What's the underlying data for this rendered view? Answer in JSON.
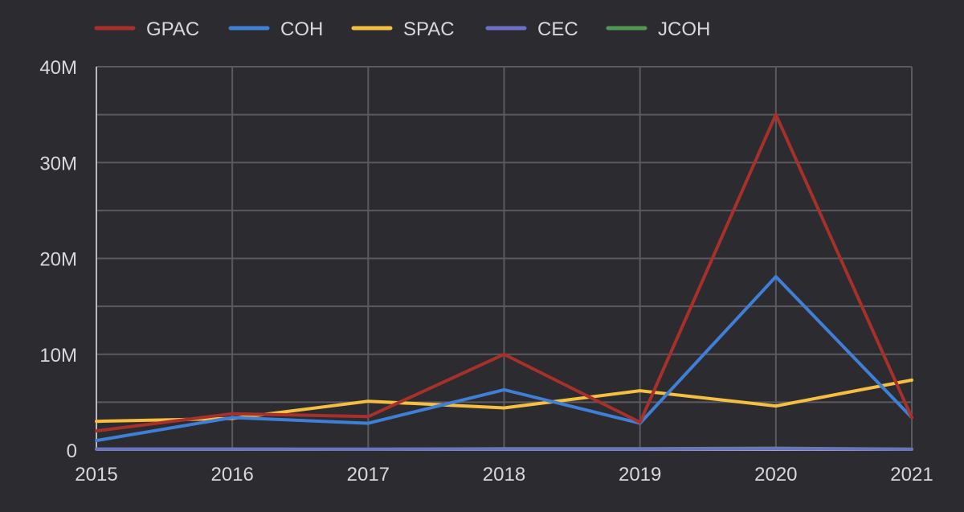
{
  "chart_data": {
    "type": "line",
    "title": "",
    "xlabel": "",
    "ylabel": "",
    "categories": [
      "2015",
      "2016",
      "2017",
      "2018",
      "2019",
      "2020",
      "2021"
    ],
    "ylim": [
      0,
      40000000
    ],
    "yticks": [
      {
        "value": 0,
        "label": "0"
      },
      {
        "value": 10000000,
        "label": "10M"
      },
      {
        "value": 20000000,
        "label": "20M"
      },
      {
        "value": 30000000,
        "label": "30M"
      },
      {
        "value": 40000000,
        "label": "40M"
      }
    ],
    "grid": true,
    "legend_position": "top-left",
    "series": [
      {
        "name": "GPAC",
        "color": "#a8302a",
        "values": [
          2000000,
          3800000,
          3500000,
          10000000,
          2900000,
          35000000,
          3400000
        ]
      },
      {
        "name": "COH",
        "color": "#3f7fd6",
        "values": [
          1000000,
          3400000,
          2800000,
          6300000,
          2800000,
          18100000,
          3400000
        ]
      },
      {
        "name": "SPAC",
        "color": "#f5bf42",
        "values": [
          3000000,
          3300000,
          5100000,
          4400000,
          6200000,
          4600000,
          7300000
        ]
      },
      {
        "name": "CEC",
        "color": "#6b72c6",
        "values": [
          100000,
          100000,
          100000,
          100000,
          100000,
          150000,
          80000
        ]
      },
      {
        "name": "JCOH",
        "color": "#4e9a52",
        "values": [
          100000,
          100000,
          80000,
          150000,
          150000,
          200000,
          100000
        ]
      }
    ]
  }
}
